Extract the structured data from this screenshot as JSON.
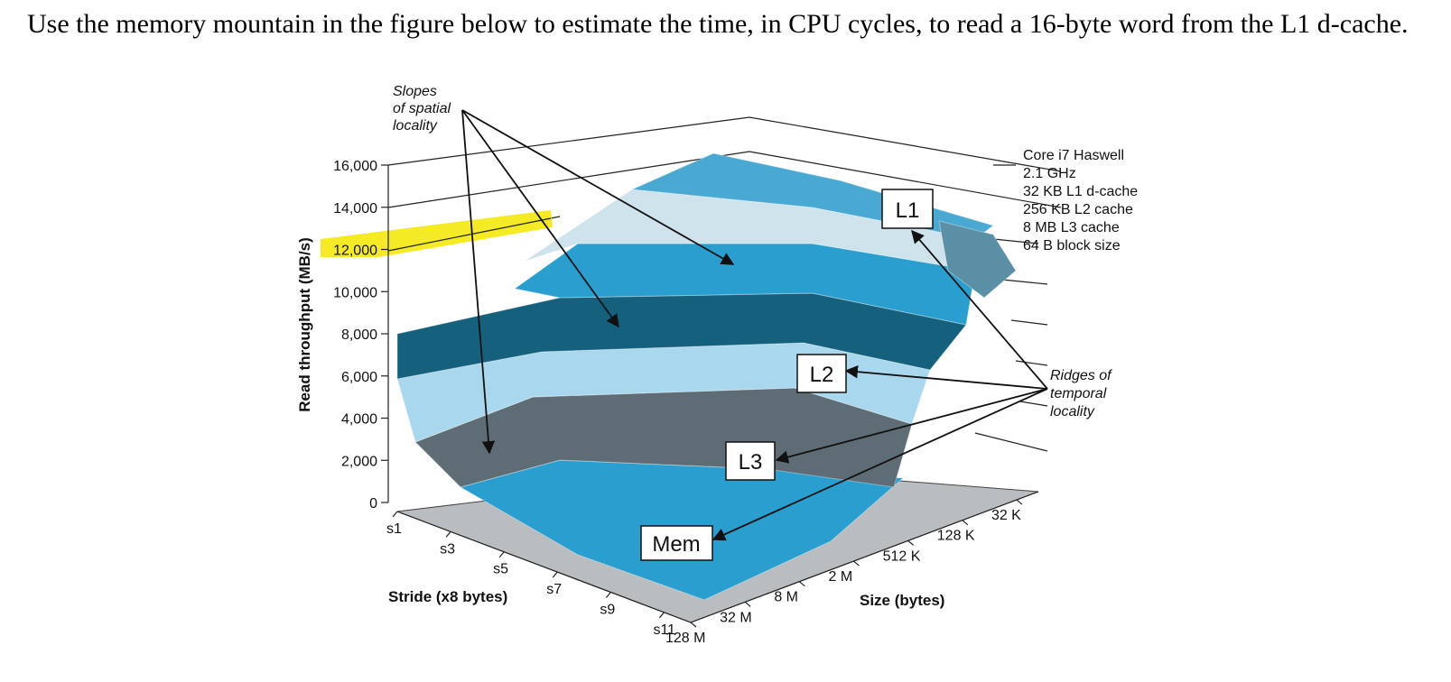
{
  "question": "Use the memory mountain in the figure below to estimate the time, in CPU cycles, to read a 16-byte word from the L1 d-cache.",
  "chart_data": {
    "type": "surface3d",
    "title": "",
    "ylabel": "Read throughput (MB/s)",
    "xlabel": "Stride (x8 bytes)",
    "zlabel": "Size (bytes)",
    "y_ticks": [
      "0",
      "2,000",
      "4,000",
      "6,000",
      "8,000",
      "10,000",
      "12,000",
      "14,000",
      "16,000"
    ],
    "ylim": [
      0,
      16000
    ],
    "highlighted_tick": "12,000",
    "stride_ticks": [
      "s1",
      "s3",
      "s5",
      "s7",
      "s9",
      "s11"
    ],
    "size_ticks": [
      "128 M",
      "32 M",
      "8 M",
      "2 M",
      "512 K",
      "128 K",
      "32 K"
    ],
    "spec_lines": [
      "Core i7 Haswell",
      "2.1 GHz",
      "32 KB L1 d-cache",
      "256 KB L2 cache",
      "8 MB L3 cache",
      "64 B block size"
    ],
    "callouts": {
      "spatial": [
        "Slopes",
        "of spatial",
        "locality"
      ],
      "temporal": [
        "Ridges of",
        "temporal",
        "locality"
      ]
    },
    "regions": [
      "L1",
      "L2",
      "L3",
      "Mem"
    ],
    "colors": {
      "light": "#a9d8ee",
      "mid": "#2a9fcf",
      "dark": "#15607c",
      "grey": "#6c7a82",
      "floor": "#b9bdc0",
      "highlight": "#f2e600"
    }
  }
}
